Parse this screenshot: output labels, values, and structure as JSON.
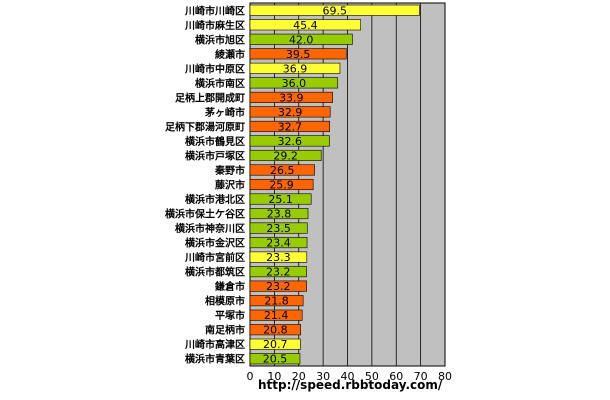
{
  "chart_data": {
    "type": "bar",
    "orientation": "horizontal",
    "categories": [
      "川崎市川崎区",
      "川崎市麻生区",
      "横浜市旭区",
      "綾瀬市",
      "川崎市中原区",
      "横浜市南区",
      "足柄上郡開成町",
      "茅ヶ崎市",
      "足柄下郡湯河原町",
      "横浜市鶴見区",
      "横浜市戸塚区",
      "秦野市",
      "藤沢市",
      "横浜市港北区",
      "横浜市保土ケ谷区",
      "横浜市神奈川区",
      "横浜市金沢区",
      "川崎市宮前区",
      "横浜市都筑区",
      "鎌倉市",
      "相模原市",
      "平塚市",
      "南足柄市",
      "川崎市高津区",
      "横浜市青葉区"
    ],
    "values": [
      69.5,
      45.4,
      42.0,
      39.5,
      36.9,
      36.0,
      33.9,
      32.9,
      32.7,
      32.6,
      29.2,
      26.5,
      25.9,
      25.1,
      23.8,
      23.5,
      23.4,
      23.3,
      23.2,
      23.2,
      21.8,
      21.4,
      20.8,
      20.7,
      20.5
    ],
    "value_labels": [
      "69.5",
      "45.4",
      "42.0",
      "39.5",
      "36.9",
      "36.0",
      "33.9",
      "32.9",
      "32.7",
      "32.6",
      "29.2",
      "26.5",
      "25.9",
      "25.1",
      "23.8",
      "23.5",
      "23.4",
      "23.3",
      "23.2",
      "23.2",
      "21.8",
      "21.4",
      "20.8",
      "20.7",
      "20.5"
    ],
    "bar_colors": [
      "yellow",
      "yellow",
      "green",
      "orange",
      "yellow",
      "green",
      "orange",
      "orange",
      "orange",
      "green",
      "green",
      "orange",
      "orange",
      "green",
      "green",
      "green",
      "green",
      "yellow",
      "green",
      "orange",
      "orange",
      "orange",
      "orange",
      "yellow",
      "green"
    ],
    "x_ticks": [
      "0",
      "10",
      "20",
      "30",
      "40",
      "50",
      "60",
      "70",
      "80"
    ],
    "xlim": [
      0,
      80
    ],
    "grid": true,
    "title": "",
    "xlabel": "",
    "ylabel": ""
  },
  "colors": {
    "yellow": "#ffff33",
    "green": "#99cc00",
    "orange": "#ff6600",
    "plot_background": "#c0c0c0",
    "gridline": "#000000"
  },
  "source_url": "http://speed.rbbtoday.com/"
}
